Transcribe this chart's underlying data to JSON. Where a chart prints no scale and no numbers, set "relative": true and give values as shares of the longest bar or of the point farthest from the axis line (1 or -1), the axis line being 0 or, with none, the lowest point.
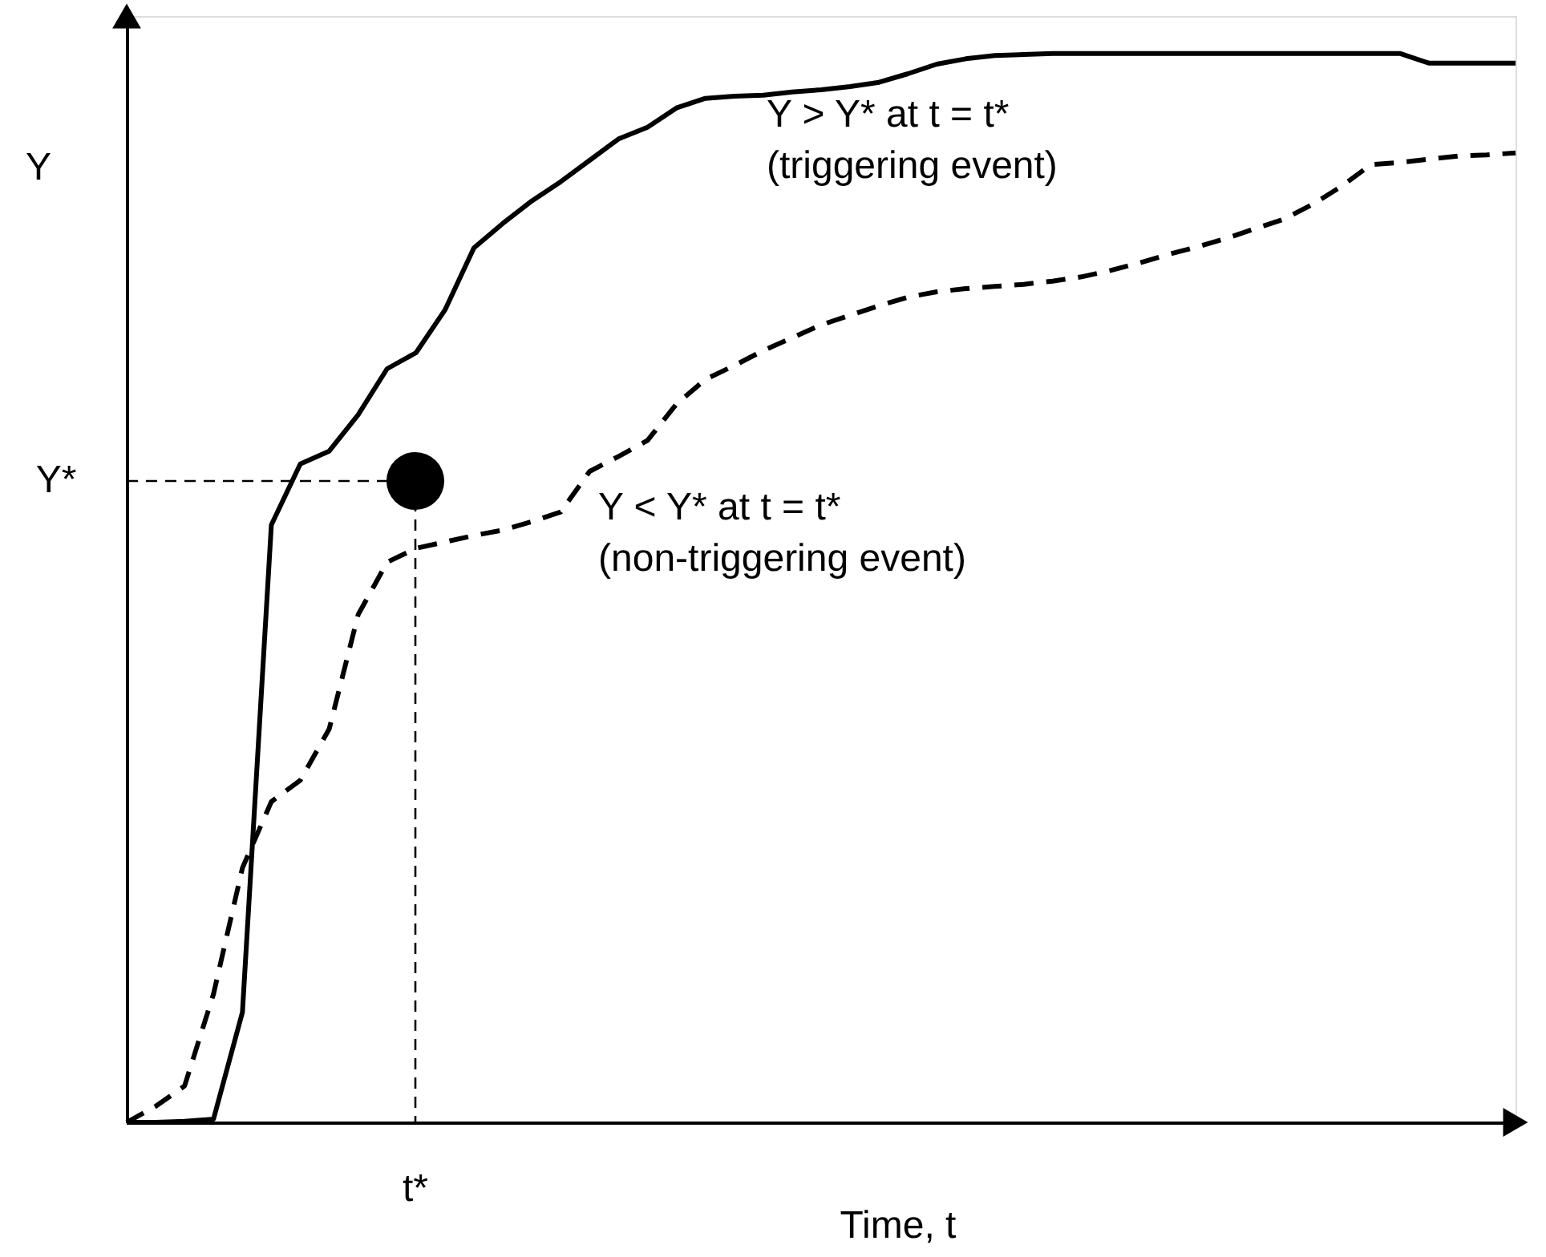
{
  "chart_data": {
    "type": "line",
    "relative": true,
    "xlabel": "Time, t",
    "ylabel": "Y",
    "categories": [
      null,
      null,
      null,
      null,
      null,
      null,
      null,
      null,
      null,
      null,
      null,
      null,
      null,
      null,
      null,
      null,
      null,
      null,
      null,
      null,
      null,
      null,
      null,
      null,
      null,
      null,
      null,
      null,
      null,
      null,
      null,
      null,
      null,
      null,
      null,
      null,
      null,
      null,
      null,
      null,
      null,
      null,
      null,
      null,
      null,
      null,
      null,
      null,
      null
    ],
    "series": [
      {
        "color": "#000000",
        "line_style": "solid",
        "values": [
          0,
          0,
          0.001,
          0.003,
          0.103,
          0.559,
          0.616,
          0.628,
          0.662,
          0.705,
          0.72,
          0.76,
          0.818,
          0.841,
          0.862,
          0.88,
          0.9,
          0.92,
          0.931,
          0.949,
          0.958,
          0.96,
          0.961,
          0.964,
          0.966,
          0.969,
          0.973,
          0.981,
          0.99,
          0.995,
          0.998,
          0.999,
          1,
          1,
          1,
          1,
          1,
          1,
          1,
          1,
          1,
          1,
          1,
          1,
          1,
          0.991,
          0.991,
          0.991,
          0.991
        ]
      },
      {
        "color": "#000000",
        "line_style": "dashed",
        "values": [
          0,
          0.015,
          0.034,
          0.12,
          0.238,
          0.3,
          0.32,
          0.368,
          0.475,
          0.524,
          0.537,
          0.543,
          0.549,
          0.554,
          0.562,
          0.571,
          0.609,
          0.623,
          0.638,
          0.672,
          0.695,
          0.708,
          0.722,
          0.734,
          0.746,
          0.755,
          0.764,
          0.772,
          0.777,
          0.78,
          0.782,
          0.784,
          0.787,
          0.791,
          0.797,
          0.804,
          0.812,
          0.819,
          0.827,
          0.836,
          0.845,
          0.859,
          0.876,
          0.896,
          0.898,
          0.901,
          0.904,
          0.905,
          0.907
        ]
      }
    ],
    "ref_lines": [
      {
        "axis": "y",
        "value": 0.6,
        "label": "Y*",
        "line_style": "dashed",
        "color": "#000000"
      }
    ],
    "annotations": [
      "Y > Y* at t = t*\n(triggering event)",
      "Y < Y* at t = t*\n(non-triggering event)",
      "t*"
    ]
  }
}
